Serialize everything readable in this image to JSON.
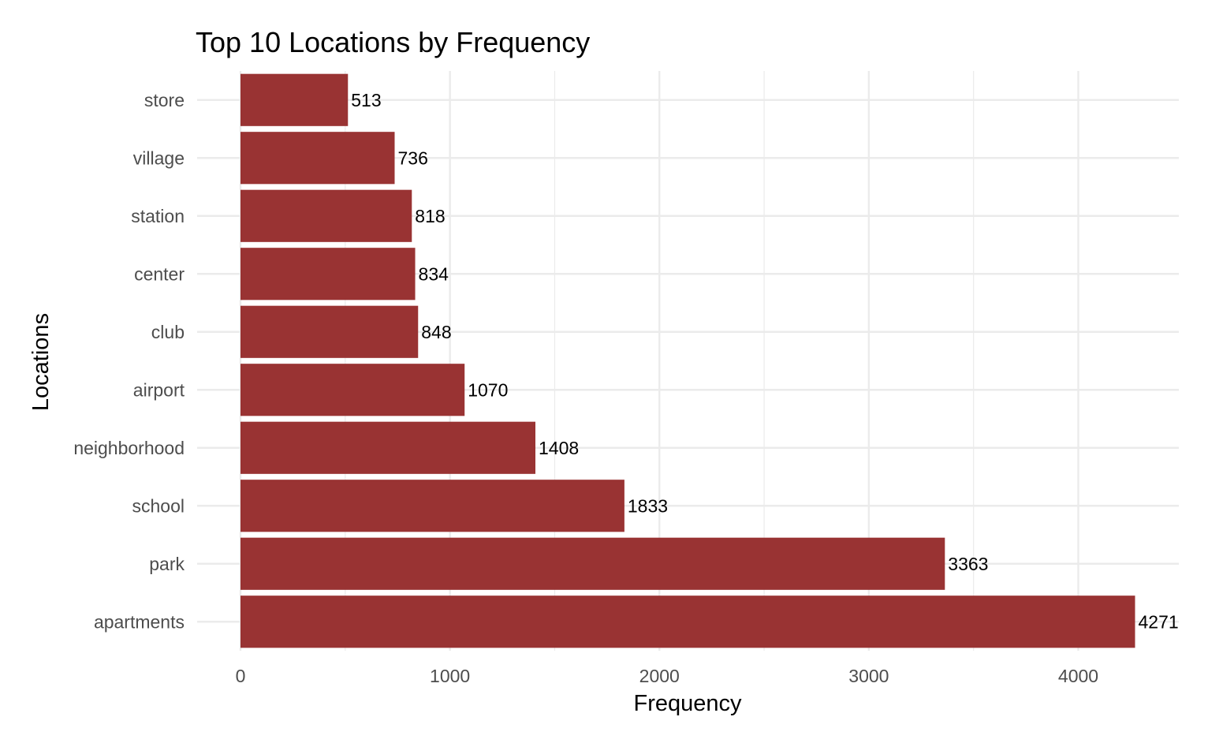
{
  "chart_data": {
    "type": "bar",
    "orientation": "horizontal",
    "title": "Top 10 Locations by Frequency",
    "xlabel": "Frequency",
    "ylabel": "Locations",
    "categories": [
      "apartments",
      "park",
      "school",
      "neighborhood",
      "airport",
      "club",
      "center",
      "station",
      "village",
      "store"
    ],
    "values": [
      4271,
      3363,
      1833,
      1408,
      1070,
      848,
      834,
      818,
      736,
      513
    ],
    "xlim": [
      0,
      4480
    ],
    "x_ticks": [
      0,
      1000,
      2000,
      3000,
      4000
    ],
    "x_tick_labels": [
      "0",
      "1000",
      "2000",
      "3000",
      "4000"
    ],
    "grid": true,
    "legend": "none",
    "bar_color": "#993333",
    "grid_color": "#ebebeb"
  }
}
